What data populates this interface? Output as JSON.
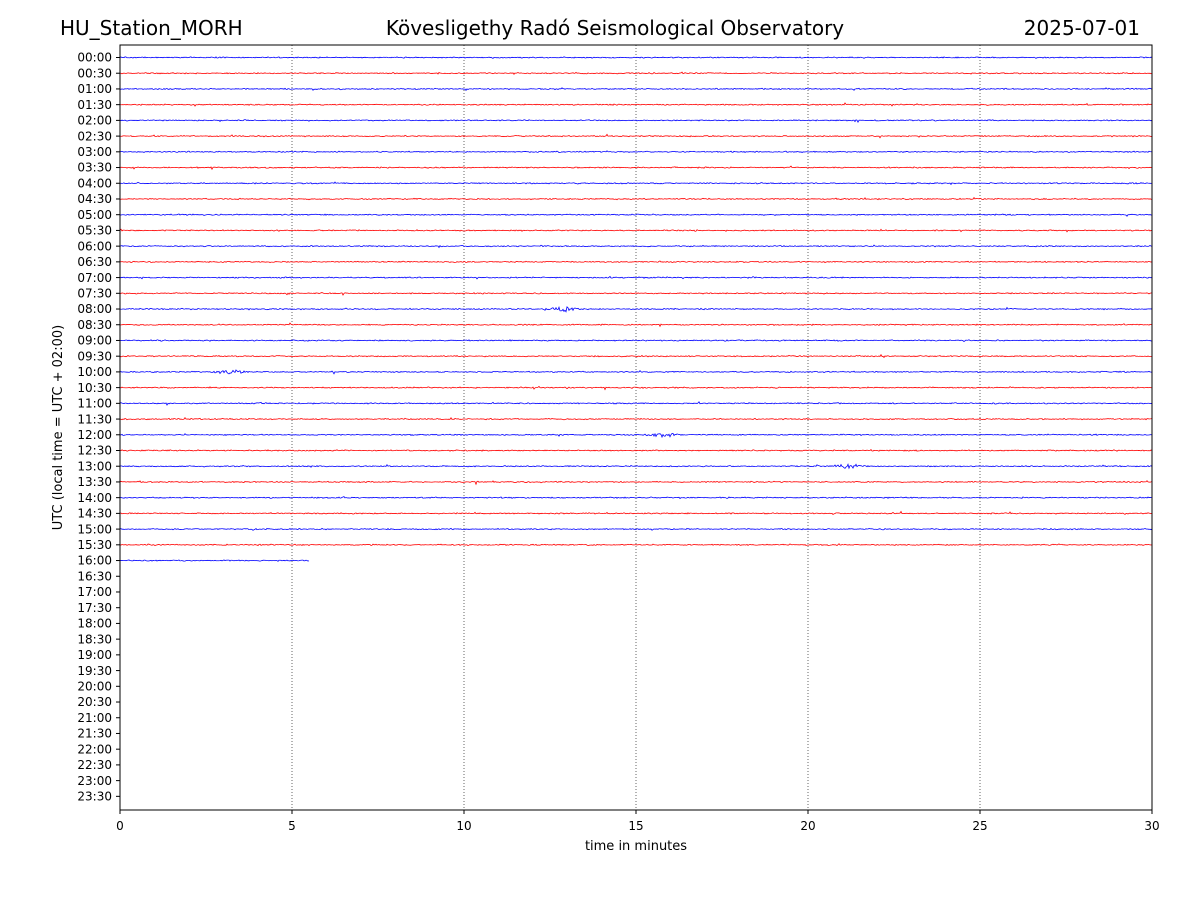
{
  "header": {
    "station": "HU_Station_MORH",
    "observatory": "Kövesligethy Radó Seismological Observatory",
    "date": "2025-07-01"
  },
  "chart_data": {
    "type": "line",
    "title": "Kövesligethy Radó Seismological Observatory",
    "xlabel": "time in minutes",
    "ylabel": "UTC (local time = UTC + 02:00)",
    "xlim": [
      0,
      30
    ],
    "x_ticks": [
      "0",
      "5",
      "10",
      "15",
      "20",
      "25",
      "30"
    ],
    "x_tick_values": [
      0,
      5,
      10,
      15,
      20,
      25,
      30
    ],
    "grid": "vertical dotted lines at each x tick",
    "row_labels": [
      "00:00",
      "00:30",
      "01:00",
      "01:30",
      "02:00",
      "02:30",
      "03:00",
      "03:30",
      "04:00",
      "04:30",
      "05:00",
      "05:30",
      "06:00",
      "06:30",
      "07:00",
      "07:30",
      "08:00",
      "08:30",
      "09:00",
      "09:30",
      "10:00",
      "10:30",
      "11:00",
      "11:30",
      "12:00",
      "12:30",
      "13:00",
      "13:30",
      "14:00",
      "14:30",
      "15:00",
      "15:30",
      "16:00",
      "16:30",
      "17:00",
      "17:30",
      "18:00",
      "18:30",
      "19:00",
      "19:30",
      "20:00",
      "20:30",
      "21:00",
      "21:30",
      "22:00",
      "22:30",
      "23:00",
      "23:30"
    ],
    "trace_colors": [
      "#0000ff",
      "#ff0000"
    ],
    "last_row_end_minute": 5.5,
    "events": [
      {
        "row": "08:00",
        "minute": 12.9
      },
      {
        "row": "10:00",
        "minute": 3.2
      },
      {
        "row": "13:00",
        "minute": 21.2
      },
      {
        "row": "12:00",
        "minute": 15.8
      }
    ]
  }
}
